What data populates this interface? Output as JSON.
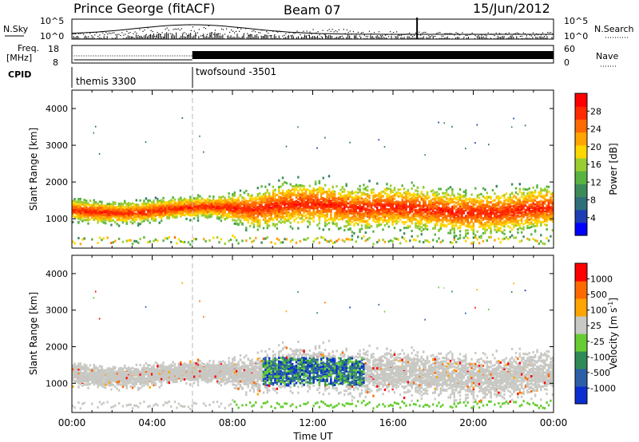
{
  "header": {
    "station": "Prince George (fitACF)",
    "beam": "Beam 07",
    "date": "15/Jun/2012"
  },
  "labels": {
    "nsky": "N.Sky",
    "nsearch": "N.Search",
    "freq_line1": "Freq.",
    "freq_line2": "[MHz]",
    "nave": "Nave",
    "cpid": "CPID"
  },
  "noise_axis": {
    "left_ticks": [
      "10^5",
      "10^0"
    ],
    "right_ticks": [
      "10^5",
      "10^0"
    ]
  },
  "freq_axis": {
    "left_ticks": [
      "18",
      "8"
    ],
    "right_ticks": [
      "60",
      "0"
    ]
  },
  "cpid_segments": [
    {
      "start_hour": 0,
      "end_hour": 6,
      "label": "themis 3300"
    },
    {
      "start_hour": 6,
      "end_hour": 24,
      "label": "twofsound -3501"
    }
  ],
  "chart_data": [
    {
      "type": "heatmap",
      "panel": "power",
      "ylabel": "Slant Range [km]",
      "xlabel": "",
      "xlim": [
        0,
        24
      ],
      "ylim": [
        200,
        4500
      ],
      "y_ticks": [
        "1000",
        "2000",
        "3000",
        "4000"
      ],
      "colorbar": {
        "label": "Power [dB]",
        "ticks": [
          "28",
          "24",
          "20",
          "16",
          "12",
          "8",
          "4"
        ],
        "range": [
          0,
          30
        ],
        "colors": [
          "#0000ff",
          "#1e3fb4",
          "#2f6f7a",
          "#3c8c5a",
          "#58b341",
          "#9acd32",
          "#ffd700",
          "#ffa500",
          "#ff6a00",
          "#ff2a00",
          "#ff0000"
        ]
      }
    },
    {
      "type": "heatmap",
      "panel": "velocity",
      "ylabel": "Slant Range [km]",
      "xlabel": "Time UT",
      "xlim": [
        0,
        24
      ],
      "ylim": [
        200,
        4500
      ],
      "x_ticks": [
        "00:00",
        "04:00",
        "08:00",
        "12:00",
        "16:00",
        "20:00",
        "00:00"
      ],
      "y_ticks": [
        "1000",
        "2000",
        "3000",
        "4000"
      ],
      "colorbar": {
        "label": "Velocity [m s",
        "label_sup": "-1",
        "label_end": "]",
        "ticks": [
          "1000",
          "500",
          "100",
          "25",
          "-25",
          "-100",
          "-500",
          "-1000"
        ],
        "colors": [
          "#0a2fd0",
          "#2c5fa8",
          "#2e8b57",
          "#66cc33",
          "#c8c8c4",
          "#ffa500",
          "#ff6a00",
          "#ff0000"
        ]
      }
    }
  ]
}
